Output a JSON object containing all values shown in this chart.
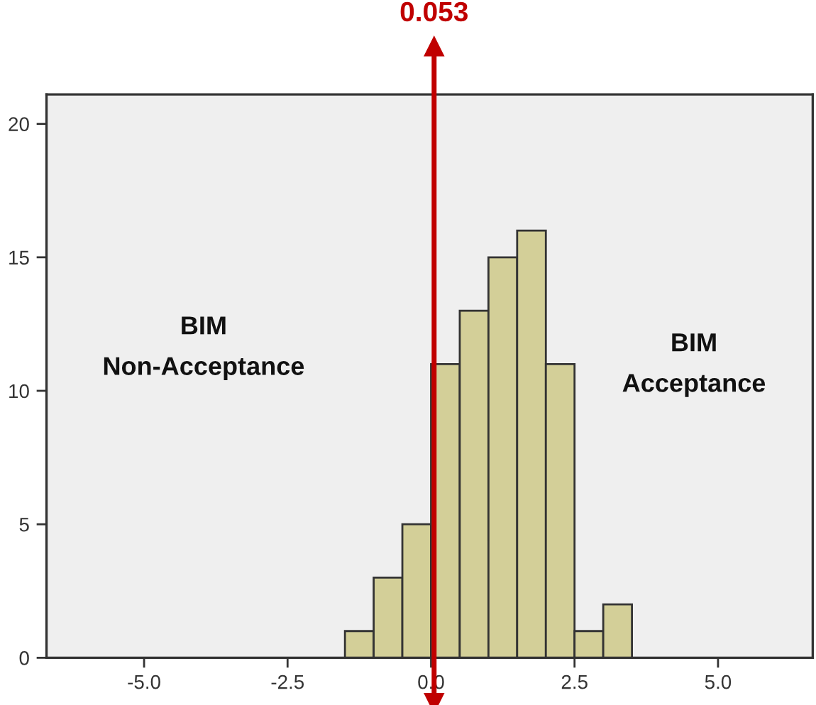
{
  "chart_data": {
    "type": "histogram",
    "bins": [
      -1.5,
      -1.0,
      -0.5,
      0.0,
      0.5,
      1.0,
      1.5,
      2.0,
      2.5,
      3.0,
      3.5
    ],
    "values": [
      1,
      3,
      5,
      11,
      13,
      15,
      16,
      11,
      1,
      2
    ],
    "color": "#d3cf98",
    "xlim": [
      -6.7,
      6.65
    ],
    "xticks": [
      {
        "value": -5,
        "label": "-5.0"
      },
      {
        "value": -2.5,
        "label": "-2.5"
      },
      {
        "value": 0,
        "label": "0.0"
      },
      {
        "value": 2.5,
        "label": "2.5"
      },
      {
        "value": 5,
        "label": "5.0"
      }
    ],
    "ylim": [
      0,
      21.1
    ],
    "yticks": [
      0,
      5,
      10,
      15,
      20
    ],
    "grid": false,
    "legend": false,
    "ref_lines": [
      {
        "axis": "x",
        "value": 0.053,
        "label": "0.053",
        "color": "#c00000"
      }
    ],
    "annotations": [
      "BIM\nNon-Acceptance",
      "BIM\nAcceptance"
    ]
  }
}
